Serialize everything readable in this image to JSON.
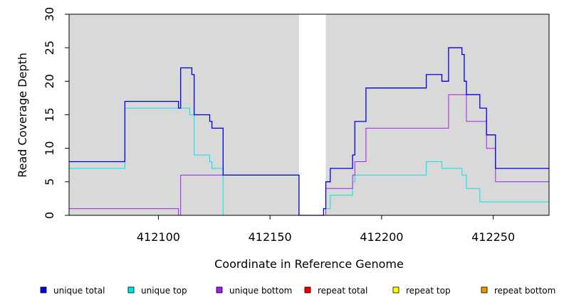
{
  "chart_data": {
    "type": "line",
    "xlabel": "Coordinate in Reference Genome",
    "ylabel": "Read Coverage Depth",
    "xlim": [
      412060,
      412275
    ],
    "ylim": [
      0,
      30
    ],
    "x_ticks": [
      412100,
      412150,
      412200,
      412250
    ],
    "y_ticks": [
      0,
      5,
      10,
      15,
      20,
      25,
      30
    ],
    "gap_region": [
      412163,
      412175
    ],
    "background_color": "#d9d9d9",
    "grid": false,
    "legend_position": "bottom",
    "series": [
      {
        "name": "unique total",
        "color": "#0000dd",
        "points": [
          [
            412060,
            8
          ],
          [
            412085,
            8
          ],
          [
            412085,
            17
          ],
          [
            412109,
            17
          ],
          [
            412109,
            16
          ],
          [
            412110,
            16
          ],
          [
            412110,
            22
          ],
          [
            412115,
            22
          ],
          [
            412115,
            21
          ],
          [
            412116,
            21
          ],
          [
            412116,
            15
          ],
          [
            412123,
            15
          ],
          [
            412123,
            14
          ],
          [
            412124,
            14
          ],
          [
            412124,
            13
          ],
          [
            412129,
            13
          ],
          [
            412129,
            6
          ],
          [
            412163,
            6
          ],
          [
            412163,
            0
          ],
          [
            412174,
            0
          ],
          [
            412174,
            1
          ],
          [
            412175,
            1
          ],
          [
            412175,
            5
          ],
          [
            412177,
            5
          ],
          [
            412177,
            7
          ],
          [
            412187,
            7
          ],
          [
            412187,
            9
          ],
          [
            412188,
            9
          ],
          [
            412188,
            14
          ],
          [
            412193,
            14
          ],
          [
            412193,
            19
          ],
          [
            412220,
            19
          ],
          [
            412220,
            21
          ],
          [
            412227,
            21
          ],
          [
            412227,
            20
          ],
          [
            412230,
            20
          ],
          [
            412230,
            25
          ],
          [
            412236,
            25
          ],
          [
            412236,
            24
          ],
          [
            412237,
            24
          ],
          [
            412237,
            20
          ],
          [
            412238,
            20
          ],
          [
            412238,
            18
          ],
          [
            412244,
            18
          ],
          [
            412244,
            16
          ],
          [
            412247,
            16
          ],
          [
            412247,
            12
          ],
          [
            412251,
            12
          ],
          [
            412251,
            7
          ],
          [
            412275,
            7
          ]
        ]
      },
      {
        "name": "unique top",
        "color": "#00e5e5",
        "points": [
          [
            412060,
            7
          ],
          [
            412085,
            7
          ],
          [
            412085,
            16
          ],
          [
            412114,
            16
          ],
          [
            412114,
            15
          ],
          [
            412116,
            15
          ],
          [
            412116,
            9
          ],
          [
            412123,
            9
          ],
          [
            412123,
            8
          ],
          [
            412124,
            8
          ],
          [
            412124,
            7
          ],
          [
            412129,
            7
          ],
          [
            412129,
            0
          ],
          [
            412174,
            0
          ],
          [
            412174,
            1
          ],
          [
            412177,
            1
          ],
          [
            412177,
            3
          ],
          [
            412187,
            3
          ],
          [
            412187,
            5
          ],
          [
            412188,
            5
          ],
          [
            412188,
            6
          ],
          [
            412220,
            6
          ],
          [
            412220,
            8
          ],
          [
            412227,
            8
          ],
          [
            412227,
            7
          ],
          [
            412236,
            7
          ],
          [
            412236,
            6
          ],
          [
            412238,
            6
          ],
          [
            412238,
            4
          ],
          [
            412244,
            4
          ],
          [
            412244,
            2
          ],
          [
            412275,
            2
          ]
        ]
      },
      {
        "name": "unique bottom",
        "color": "#a020f0",
        "points": [
          [
            412060,
            1
          ],
          [
            412109,
            1
          ],
          [
            412109,
            0
          ],
          [
            412110,
            0
          ],
          [
            412110,
            6
          ],
          [
            412163,
            6
          ],
          [
            412163,
            0
          ],
          [
            412175,
            0
          ],
          [
            412175,
            4
          ],
          [
            412187,
            4
          ],
          [
            412187,
            6
          ],
          [
            412188,
            6
          ],
          [
            412188,
            8
          ],
          [
            412193,
            8
          ],
          [
            412193,
            13
          ],
          [
            412230,
            13
          ],
          [
            412230,
            18
          ],
          [
            412238,
            18
          ],
          [
            412238,
            14
          ],
          [
            412247,
            14
          ],
          [
            412247,
            10
          ],
          [
            412251,
            10
          ],
          [
            412251,
            5
          ],
          [
            412275,
            5
          ]
        ]
      },
      {
        "name": "repeat total",
        "color": "#ee0000",
        "points": [
          [
            412060,
            0
          ],
          [
            412275,
            0
          ]
        ]
      },
      {
        "name": "repeat top",
        "color": "#ffff00",
        "points": [
          [
            412060,
            0
          ],
          [
            412275,
            0
          ]
        ]
      },
      {
        "name": "repeat bottom",
        "color": "#ee9900",
        "points": [
          [
            412060,
            0
          ],
          [
            412275,
            0
          ]
        ]
      }
    ]
  }
}
